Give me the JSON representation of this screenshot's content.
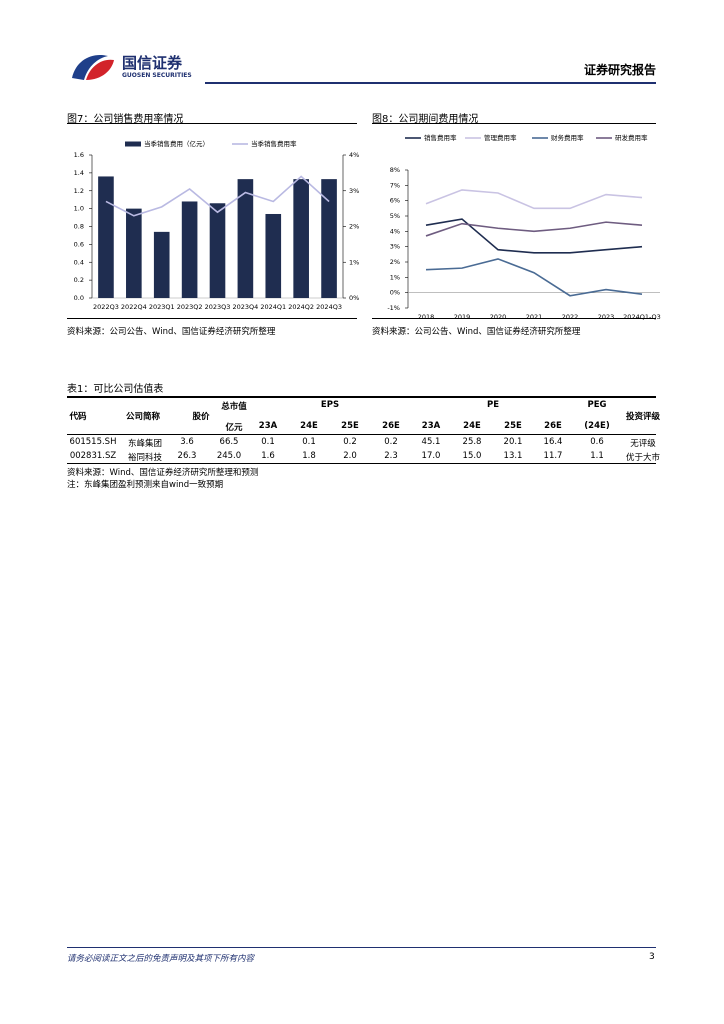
{
  "header": {
    "logo_cn": "国信证券",
    "logo_en": "GUOSEN SECURITIES",
    "report_type": "证券研究报告"
  },
  "figures": [
    {
      "title": "图7：公司销售费用率情况",
      "source": "资料来源：公司公告、Wind、国信证券经济研究所整理"
    },
    {
      "title": "图8：公司期间费用情况",
      "source": "资料来源：公司公告、Wind、国信证券经济研究所整理"
    }
  ],
  "chart_data": [
    {
      "type": "bar",
      "categories": [
        "2022Q3",
        "2022Q4",
        "2023Q1",
        "2023Q2",
        "2023Q3",
        "2023Q4",
        "2024Q1",
        "2024Q2",
        "2024Q3"
      ],
      "series": [
        {
          "name": "当季销售费用（亿元）",
          "type": "bar",
          "color": "#1f2d50",
          "values": [
            1.36,
            1.0,
            0.74,
            1.08,
            1.06,
            1.33,
            0.94,
            1.33,
            1.33
          ]
        },
        {
          "name": "当季销售费用率",
          "type": "line",
          "axis": "y2",
          "color": "#b9b9e2",
          "values": [
            2.7,
            2.3,
            2.55,
            3.05,
            2.4,
            2.95,
            2.7,
            3.4,
            2.7
          ]
        }
      ],
      "ylim": [
        0,
        1.6
      ],
      "yticks": [
        {
          "value": 0,
          "label": "0.0"
        },
        {
          "value": 0.2,
          "label": "0.2"
        },
        {
          "value": 0.4,
          "label": "0.4"
        },
        {
          "value": 0.6,
          "label": "0.6"
        },
        {
          "value": 0.8,
          "label": "0.8"
        },
        {
          "value": 1.0,
          "label": "1.0"
        },
        {
          "value": 1.2,
          "label": "1.2"
        },
        {
          "value": 1.4,
          "label": "1.4"
        },
        {
          "value": 1.6,
          "label": "1.6"
        }
      ],
      "y2lim": [
        0,
        4
      ],
      "y2ticks": [
        {
          "value": 0,
          "label": "0%"
        },
        {
          "value": 1,
          "label": "1%"
        },
        {
          "value": 2,
          "label": "2%"
        },
        {
          "value": 3,
          "label": "3%"
        },
        {
          "value": 4,
          "label": "4%"
        }
      ],
      "grid": false
    },
    {
      "type": "line",
      "categories": [
        "2018",
        "2019",
        "2020",
        "2021",
        "2022",
        "2023",
        "2024Q1-Q3"
      ],
      "series": [
        {
          "name": "销售费用率",
          "color": "#1f2d50",
          "values": [
            4.4,
            4.8,
            2.8,
            2.6,
            2.6,
            2.8,
            3.0
          ]
        },
        {
          "name": "管理费用率",
          "color": "#c9c3e3",
          "values": [
            5.8,
            6.7,
            6.5,
            5.5,
            5.5,
            6.4,
            6.2
          ]
        },
        {
          "name": "财务费用率",
          "color": "#4a6b94",
          "values": [
            1.5,
            1.6,
            2.2,
            1.3,
            -0.2,
            0.2,
            -0.1
          ]
        },
        {
          "name": "研发费用率",
          "color": "#6e5c80",
          "values": [
            3.7,
            4.5,
            4.2,
            4.0,
            4.2,
            4.6,
            4.4
          ]
        }
      ],
      "ylim": [
        -1,
        8
      ],
      "yticks": [
        {
          "value": -1,
          "label": "-1%"
        },
        {
          "value": 0,
          "label": "0%"
        },
        {
          "value": 1,
          "label": "1%"
        },
        {
          "value": 2,
          "label": "2%"
        },
        {
          "value": 3,
          "label": "3%"
        },
        {
          "value": 4,
          "label": "4%"
        },
        {
          "value": 5,
          "label": "5%"
        },
        {
          "value": 6,
          "label": "6%"
        },
        {
          "value": 7,
          "label": "7%"
        },
        {
          "value": 8,
          "label": "8%"
        }
      ],
      "grid": false
    }
  ],
  "table": {
    "title": "表1：可比公司估值表",
    "head_top": [
      "代码",
      "公司简称",
      "股价",
      "总市值",
      "EPS",
      "PE",
      "PEG",
      "投资评级"
    ],
    "head_sub": [
      "亿元",
      "23A",
      "24E",
      "25E",
      "26E",
      "23A",
      "24E",
      "25E",
      "26E",
      "(24E)"
    ],
    "rows": [
      [
        "601515.SH",
        "东峰集团",
        "3.6",
        "66.5",
        "0.1",
        "0.1",
        "0.2",
        "0.2",
        "45.1",
        "25.8",
        "20.1",
        "16.4",
        "0.6",
        "无评级"
      ],
      [
        "002831.SZ",
        "裕同科技",
        "26.3",
        "245.0",
        "1.6",
        "1.8",
        "2.0",
        "2.3",
        "17.0",
        "15.0",
        "13.1",
        "11.7",
        "1.1",
        "优于大市"
      ]
    ],
    "source": "资料来源：Wind、国信证券经济研究所整理和预测",
    "note": "注：东峰集团盈利预测来自wind一致预期"
  },
  "footer": {
    "disclaimer": "请务必阅读正文之后的免责声明及其项下所有内容",
    "page": "3"
  }
}
